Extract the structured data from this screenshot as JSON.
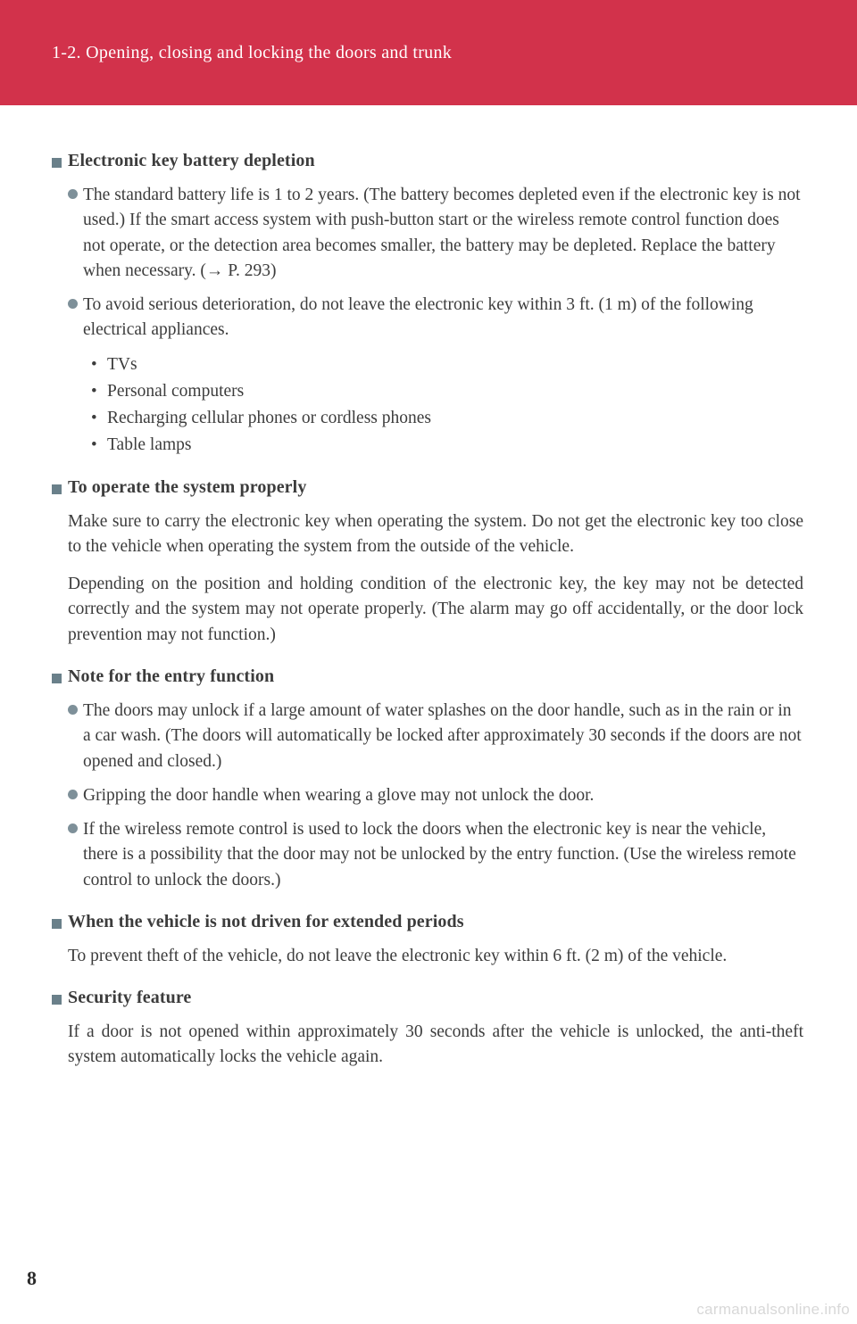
{
  "header": {
    "chapter": "1-2. Opening, closing and locking the doors and trunk"
  },
  "colors": {
    "header_bg": "#d2324b",
    "header_text": "#ffffff",
    "square_marker": "#6a808a",
    "round_marker": "#7e9099",
    "body_text": "#3c3c3c",
    "watermark": "#d8d8d8"
  },
  "sections": [
    {
      "title": "Electronic key battery depletion",
      "bullets": [
        {
          "text": "The standard battery life is 1 to 2 years. (The battery becomes depleted even if the electronic key is not used.) If the smart access system with push-button start or the wireless remote control function does not operate, or the detection area becomes smaller, the battery may be depleted. Replace the battery when necessary. (→ P. 293)"
        },
        {
          "text": "To avoid serious deterioration, do not leave the electronic key within 3 ft. (1 m) of the following electrical appliances.",
          "subitems": [
            "TVs",
            "Personal computers",
            "Recharging cellular phones or cordless phones",
            "Table lamps"
          ]
        }
      ]
    },
    {
      "title": "To operate the system properly",
      "paragraphs": [
        "Make sure to carry the electronic key when operating the system. Do not get the electronic key too close to the vehicle when operating the system from the outside of the vehicle.",
        "Depending on the position and holding condition of the electronic key, the key may not be detected correctly and the system may not operate properly. (The alarm may go off accidentally, or the door lock prevention may not function.)"
      ]
    },
    {
      "title": "Note for the entry function",
      "bullets": [
        {
          "text": "The doors may unlock if a large amount of water splashes on the door handle, such as in the rain or in a car wash. (The doors will automatically be locked after approximately 30 seconds if the doors are not opened and closed.)"
        },
        {
          "text": "Gripping the door handle when wearing a glove may not unlock the door."
        },
        {
          "text": "If the wireless remote control is used to lock the doors when the electronic key is near the vehicle, there is a possibility that the door may not be unlocked by the entry function. (Use the wireless remote control to unlock the doors.)"
        }
      ]
    },
    {
      "title": "When the vehicle is not driven for extended periods",
      "paragraphs": [
        "To prevent theft of the vehicle, do not leave the electronic key within 6 ft. (2 m) of the vehicle."
      ]
    },
    {
      "title": "Security feature",
      "paragraphs": [
        "If a door is not opened within approximately 30 seconds after the vehicle is unlocked, the anti-theft system automatically locks the vehicle again."
      ]
    }
  ],
  "page_number": "8",
  "watermark": "carmanualsonline.info"
}
